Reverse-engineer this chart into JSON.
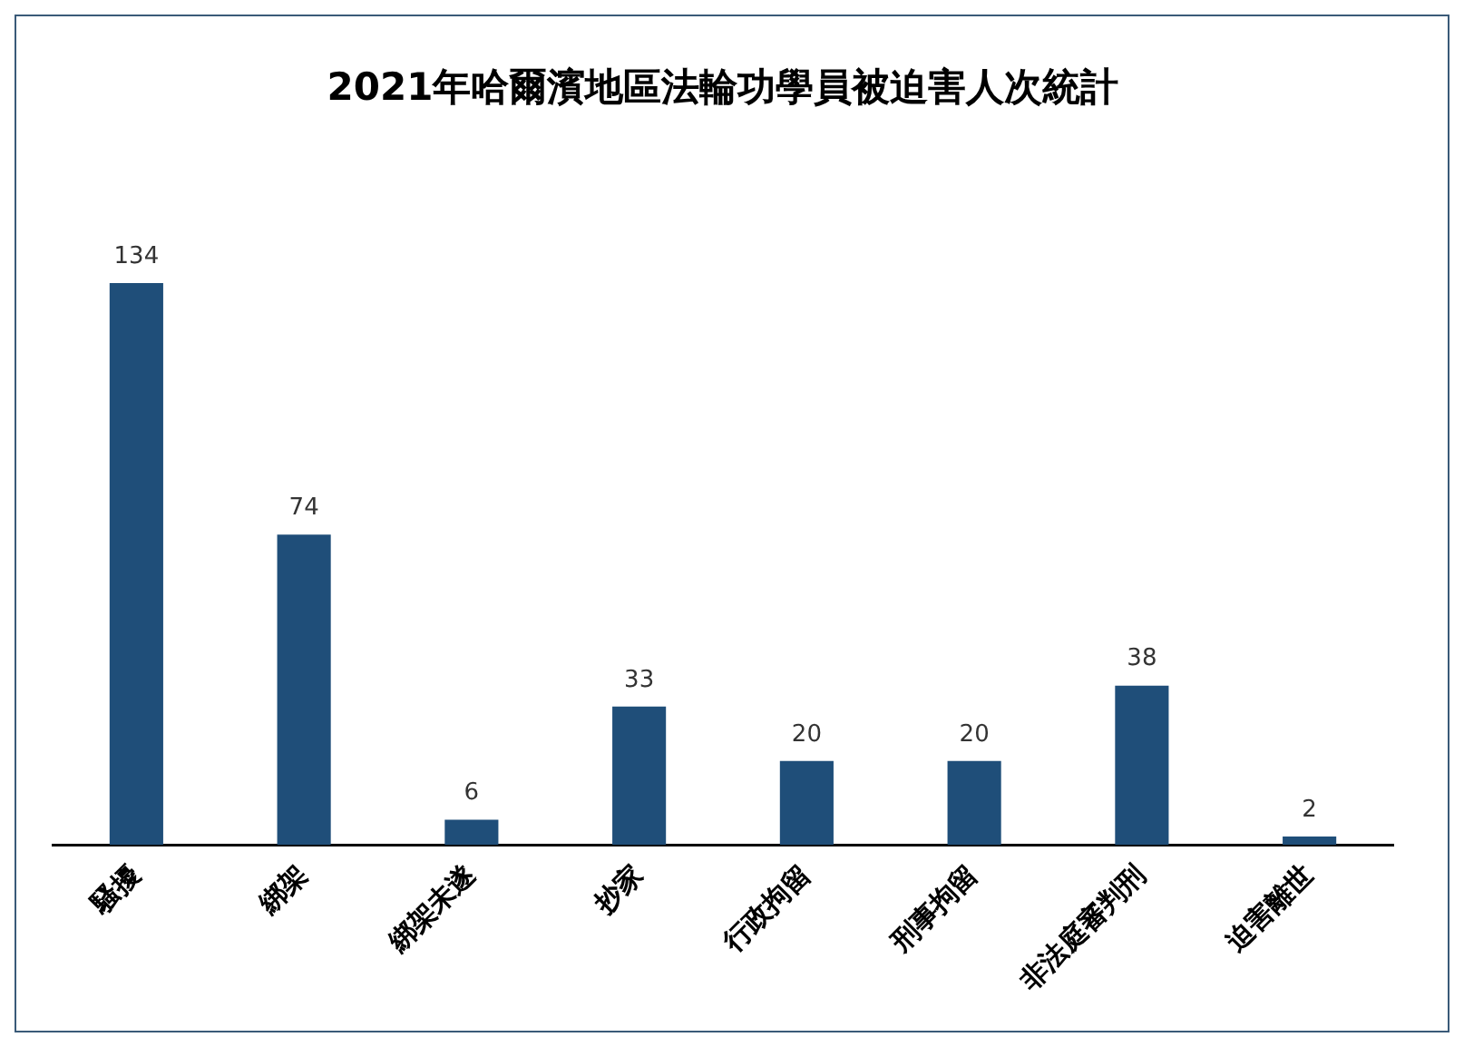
{
  "chart_data": {
    "type": "bar",
    "title": "2021年哈爾濱地區法輪功學員被迫害人次統計",
    "categories": [
      "騷擾",
      "綁架",
      "綁架未遂",
      "抄家",
      "行政拘留",
      "刑事拘留",
      "非法庭審判刑",
      "迫害離世"
    ],
    "values": [
      134,
      74,
      6,
      33,
      20,
      20,
      38,
      2
    ],
    "color": "#1f4e79",
    "data_labels": true,
    "grid": false,
    "legend": false
  }
}
